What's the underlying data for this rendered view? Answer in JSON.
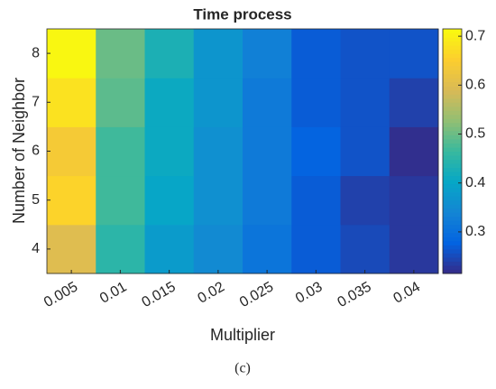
{
  "chart_data": {
    "type": "heatmap",
    "title": "Time process",
    "xlabel": "Multiplier",
    "ylabel": "Number of Neighbor",
    "categories": [
      "0.005",
      "0.01",
      "0.015",
      "0.02",
      "0.025",
      "0.03",
      "0.035",
      "0.04"
    ],
    "y_categories": [
      "4",
      "5",
      "6",
      "7",
      "8"
    ],
    "z": [
      [
        0.6,
        0.45,
        0.38,
        0.35,
        0.31,
        0.27,
        0.25,
        0.23
      ],
      [
        0.66,
        0.47,
        0.4,
        0.36,
        0.32,
        0.27,
        0.24,
        0.23
      ],
      [
        0.64,
        0.47,
        0.41,
        0.36,
        0.32,
        0.28,
        0.26,
        0.22
      ],
      [
        0.68,
        0.49,
        0.41,
        0.37,
        0.32,
        0.27,
        0.26,
        0.24
      ],
      [
        0.71,
        0.5,
        0.43,
        0.37,
        0.33,
        0.27,
        0.26,
        0.26
      ]
    ],
    "colormap": "parula",
    "clim": [
      0.215,
      0.715
    ],
    "colorbar_ticks": [
      0.3,
      0.4,
      0.5,
      0.6,
      0.7
    ],
    "caption": "(c)"
  }
}
